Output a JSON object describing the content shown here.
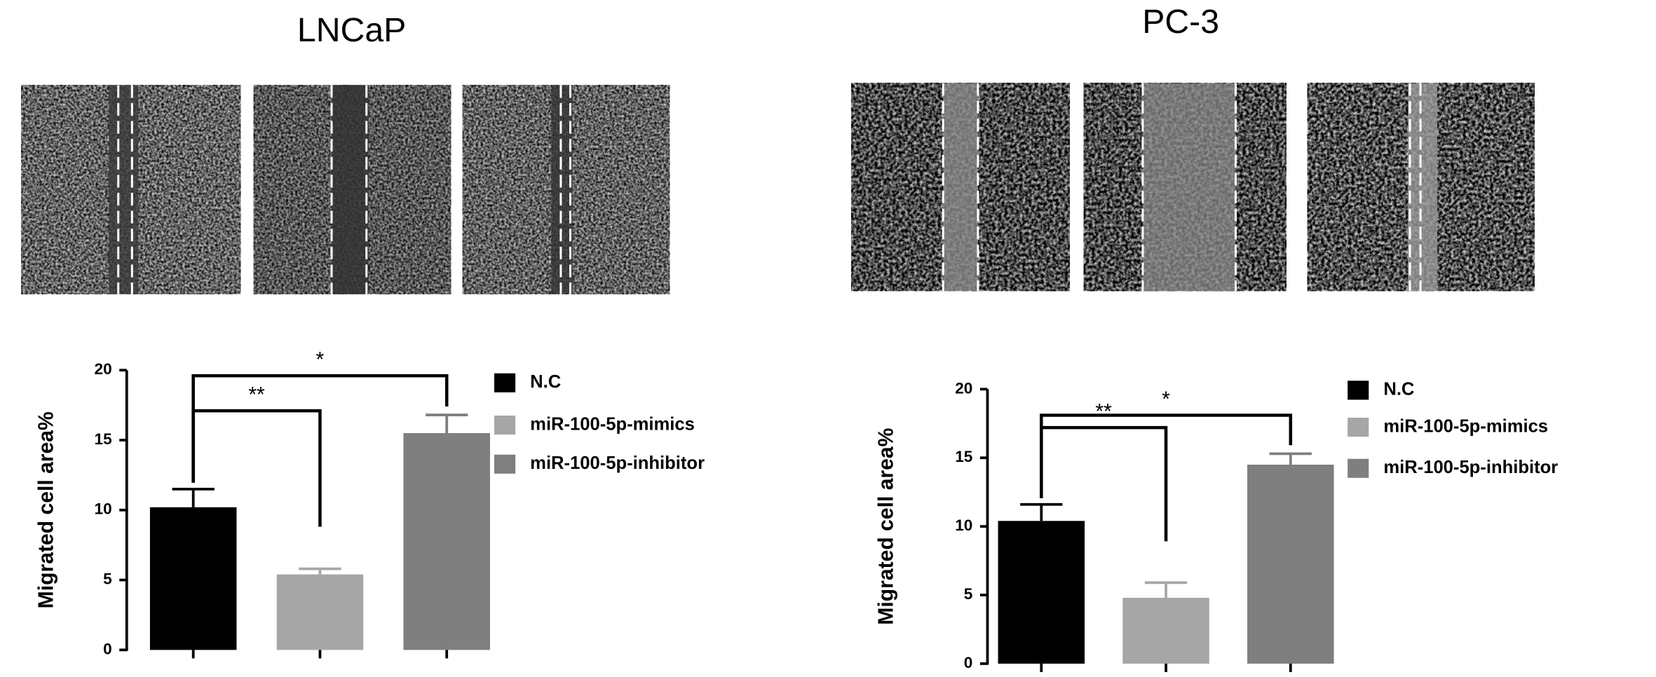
{
  "chart_data": [
    {
      "type": "bar",
      "title": "LNCaP",
      "y_label": "Migrated cell area%",
      "categories": [
        null
      ],
      "series": [
        {
          "name": "N.C",
          "color": "#000000",
          "values": [
            10.2
          ],
          "errors": [
            1.3
          ]
        },
        {
          "name": "miR-100-5p-mimics",
          "color": "#a6a6a6",
          "values": [
            5.4
          ],
          "errors": [
            0.4
          ]
        },
        {
          "name": "miR-100-5p-inhibitor",
          "color": "#7f7f7f",
          "values": [
            15.5
          ],
          "errors": [
            1.3
          ]
        }
      ],
      "ylim": [
        0,
        20
      ],
      "yticks": [
        0,
        5,
        10,
        15,
        20
      ],
      "annotations": [
        {
          "text": "**"
        },
        {
          "text": "*"
        }
      ]
    },
    {
      "type": "bar",
      "title": "PC-3",
      "y_label": "Migrated cell area%",
      "categories": [
        null
      ],
      "series": [
        {
          "name": "N.C",
          "color": "#000000",
          "values": [
            10.4
          ],
          "errors": [
            1.2
          ]
        },
        {
          "name": "miR-100-5p-mimics",
          "color": "#a6a6a6",
          "values": [
            4.8
          ],
          "errors": [
            1.1
          ]
        },
        {
          "name": "miR-100-5p-inhibitor",
          "color": "#7f7f7f",
          "values": [
            14.5
          ],
          "errors": [
            0.8
          ]
        }
      ],
      "ylim": [
        0,
        20
      ],
      "yticks": [
        0,
        5,
        10,
        15,
        20
      ],
      "annotations": [
        {
          "text": "**"
        },
        {
          "text": "*"
        }
      ]
    }
  ]
}
